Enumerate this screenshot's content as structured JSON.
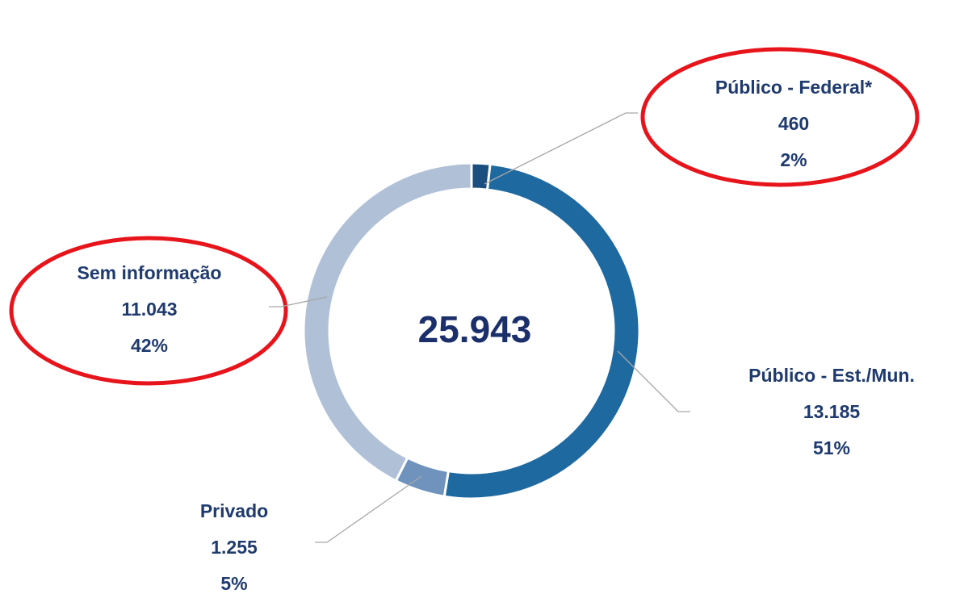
{
  "chart_data": {
    "type": "donut",
    "categories": [
      "Público - Federal*",
      "Público - Est./Mun.",
      "Privado",
      "Sem informação"
    ],
    "values": [
      460,
      13185,
      1255,
      11043
    ],
    "value_labels": [
      "460",
      "13.185",
      "1.255",
      "11.043"
    ],
    "percent_labels": [
      "2%",
      "51%",
      "5%",
      "42%"
    ],
    "colors": [
      "#1a4f80",
      "#1f69a1",
      "#6f93bd",
      "#b0c0d7"
    ],
    "center_label": "25.943"
  }
}
